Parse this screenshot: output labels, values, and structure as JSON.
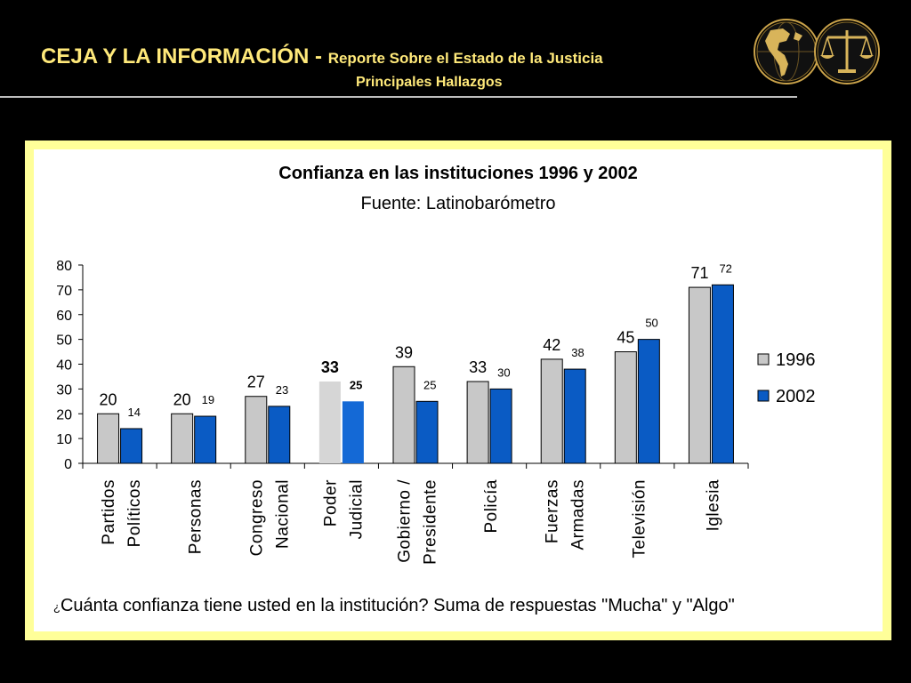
{
  "header": {
    "title_main": "CEJA Y LA INFORMACIÓN -",
    "title_sub": "Reporte Sobre el Estado de la Justicia",
    "subtitle": "Principales Hallazgos"
  },
  "colors": {
    "header_text": "#ffe97a",
    "frame": "#ffff99",
    "series_1996": "#c8c8c8",
    "series_2002": "#0a5bc4",
    "highlight_1996": "#d6d6d6",
    "highlight_2002": "#1469d6"
  },
  "logos": [
    "globe-icon",
    "scales-of-justice-icon"
  ],
  "chart_data": {
    "type": "bar",
    "title": "Confianza en las instituciones 1996 y 2002",
    "subtitle": "Fuente: Latinobarómetro",
    "categories": [
      [
        "Partidos",
        "Políticos"
      ],
      [
        "Personas"
      ],
      [
        "Congreso",
        "Nacional"
      ],
      [
        "Poder",
        "Judicial"
      ],
      [
        "Gobierno /",
        "Presidente"
      ],
      [
        "Policía"
      ],
      [
        "Fuerzas",
        "Armadas"
      ],
      [
        "Televisión"
      ],
      [
        "Iglesia"
      ]
    ],
    "series": [
      {
        "name": "1996",
        "values": [
          20,
          20,
          27,
          33,
          39,
          33,
          42,
          45,
          71
        ]
      },
      {
        "name": "2002",
        "values": [
          14,
          19,
          23,
          25,
          25,
          30,
          38,
          50,
          72
        ]
      }
    ],
    "highlight_category_index": 3,
    "ylim": [
      0,
      80
    ],
    "yticks": [
      0,
      10,
      20,
      30,
      40,
      50,
      60,
      70,
      80
    ],
    "legend": "right",
    "grid": false
  },
  "footnote": {
    "mark": "¿",
    "text": "Cuánta confianza tiene usted en la institución? Suma de respuestas \"Mucha\" y \"Algo\""
  }
}
